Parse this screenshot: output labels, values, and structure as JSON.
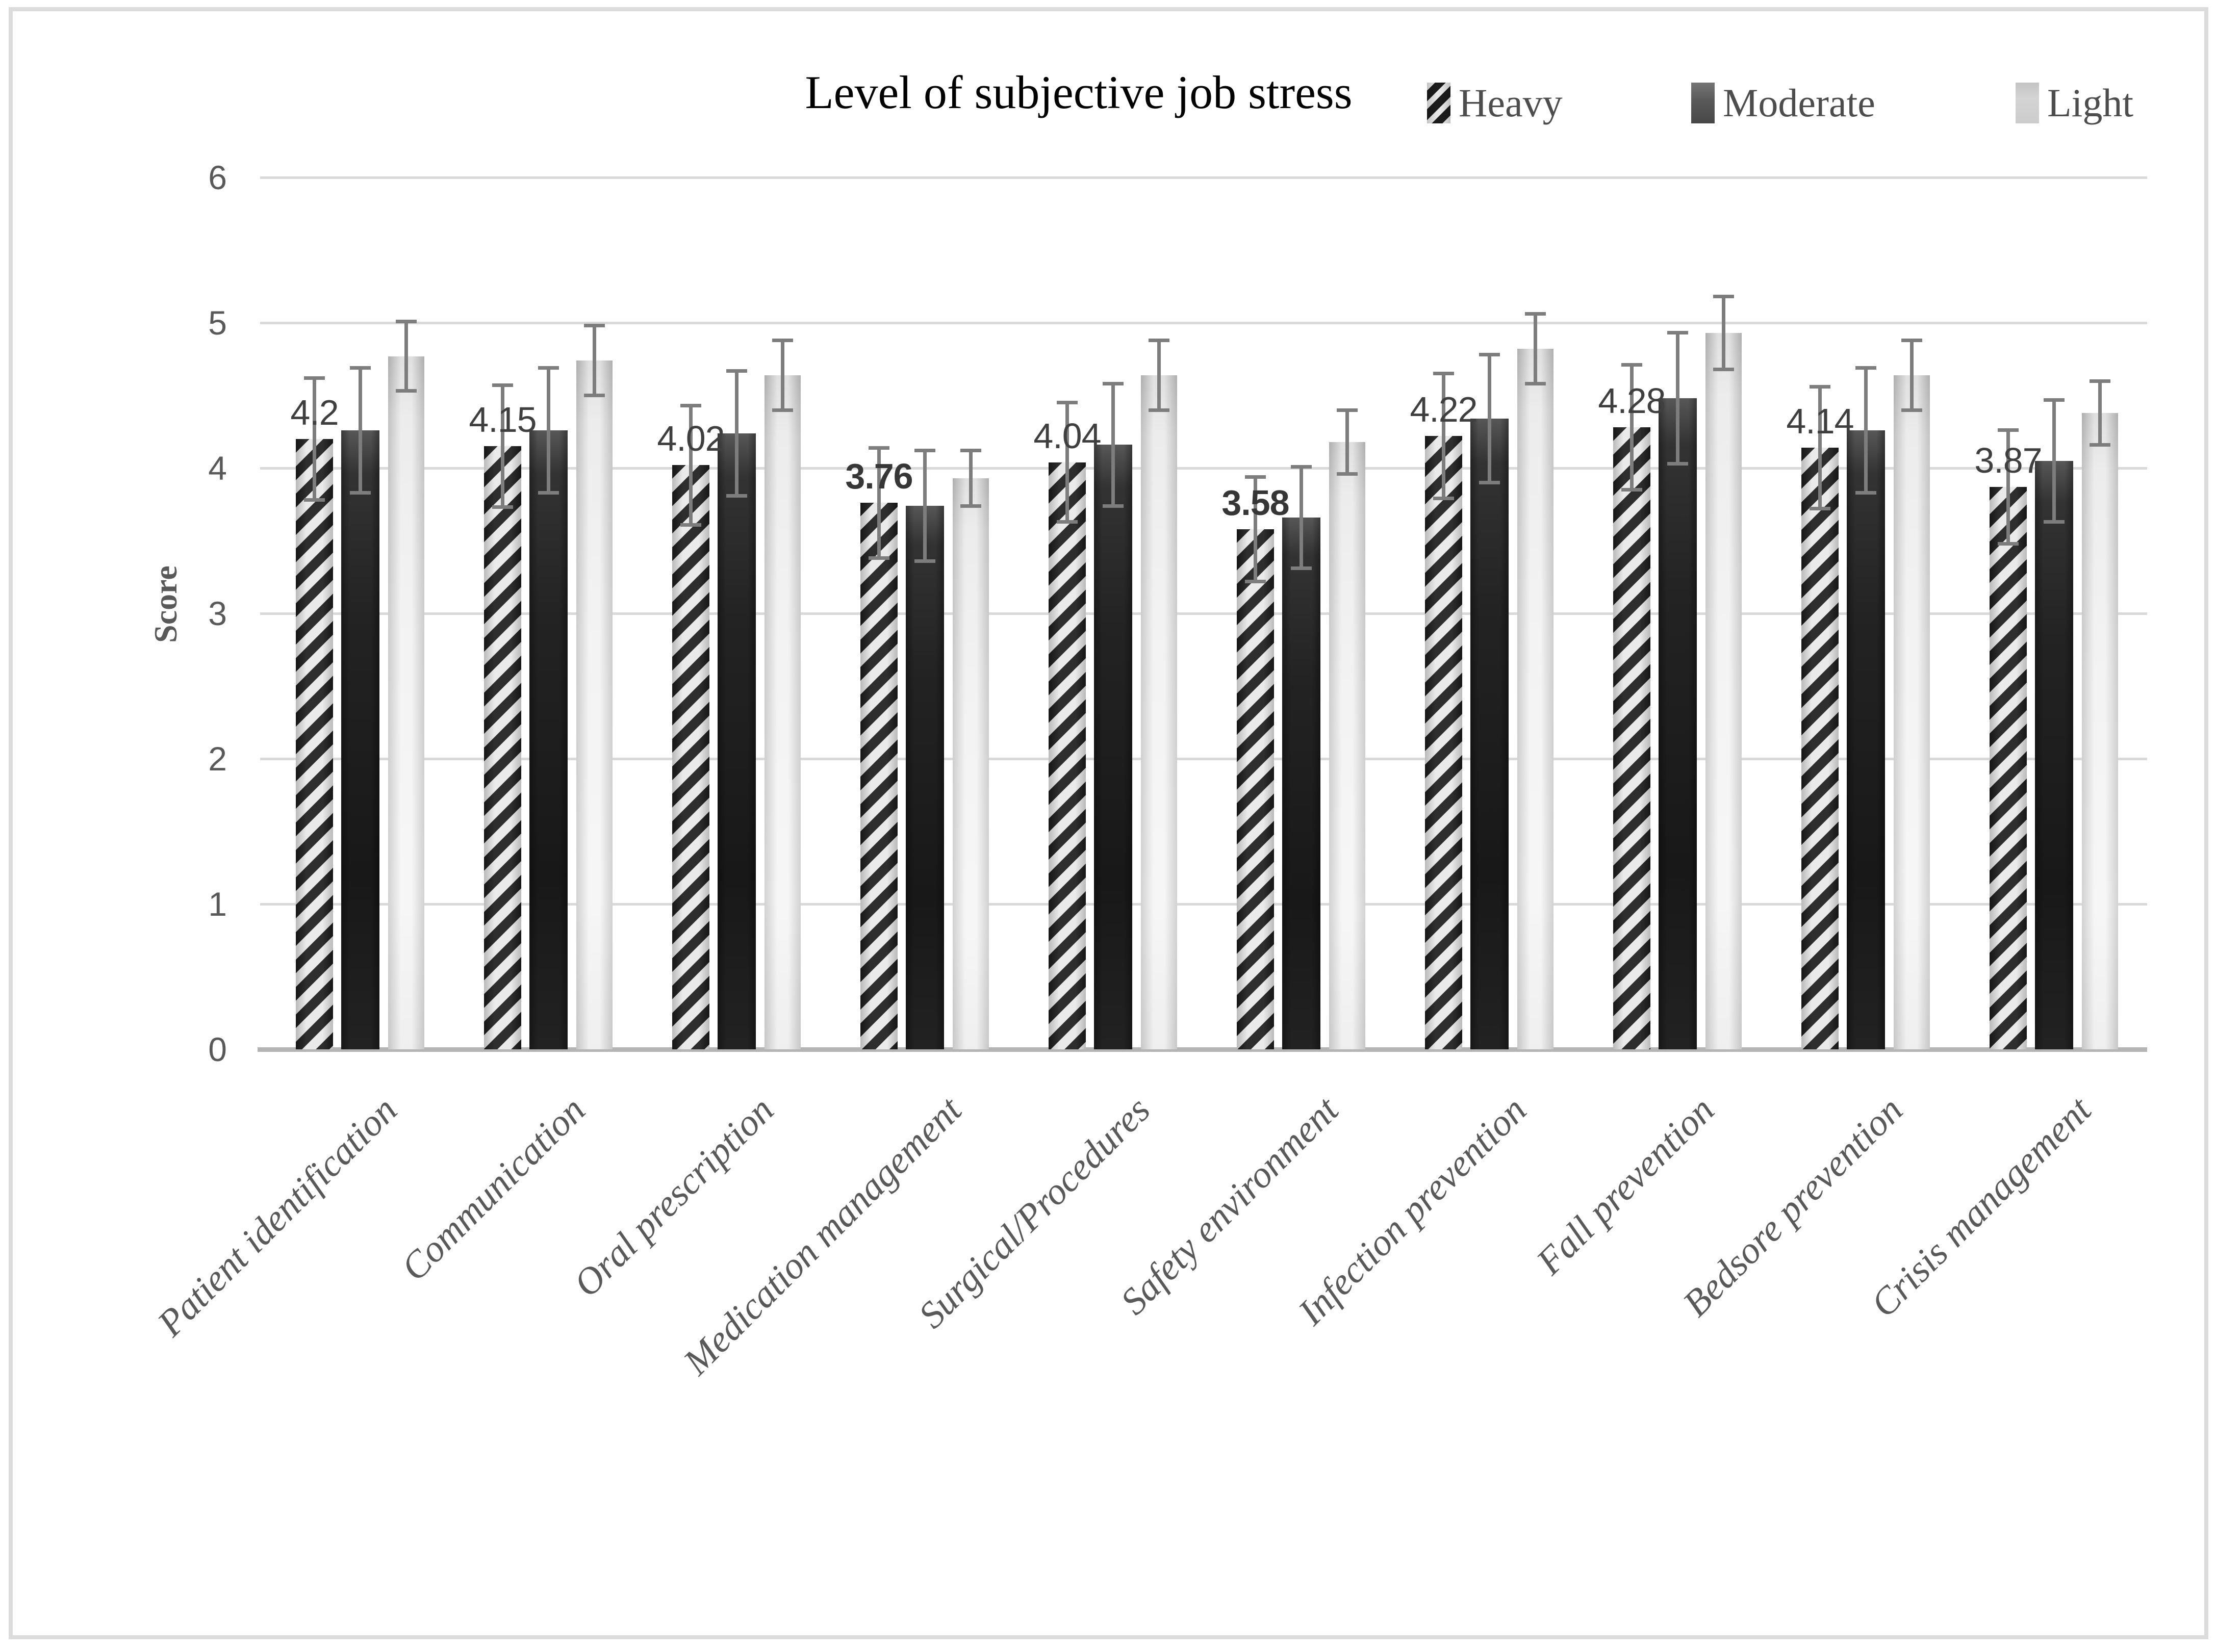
{
  "title": "Level of subjective job stress",
  "y_axis": {
    "label": "Score"
  },
  "legend": {
    "position": "top-right",
    "items": [
      {
        "key": "heavy",
        "label": "Heavy"
      },
      {
        "key": "moderate",
        "label": "Moderate"
      },
      {
        "key": "light",
        "label": "Light"
      }
    ]
  },
  "colors": {
    "hatch_stripe": "#1c1c1c",
    "hatch_background": "#e8e8e8",
    "moderate_fill": "#1f1f1f",
    "light_fill": "#e7e7e7",
    "gridline": "#d9d9d9",
    "axis_line": "#b4b4b4",
    "error_bar": "#7d7d7d",
    "text_gray": "#595959",
    "data_label": "#3f3f3f"
  },
  "chart_data": {
    "type": "bar",
    "title": "Level of subjective job stress",
    "xlabel": "",
    "ylabel": "Score",
    "ylim": [
      0,
      6
    ],
    "yticks": [
      0,
      1,
      2,
      3,
      4,
      5,
      6
    ],
    "grid": true,
    "legend_position": "top-right",
    "categories": [
      "Patient identification",
      "Communication",
      "Oral prescription",
      "Medication management",
      "Surgical/Procedures",
      "Safety environment",
      "Infection prevention",
      "Fall prevention",
      "Bedsore prevention",
      "Crisis management"
    ],
    "series": [
      {
        "name": "Heavy",
        "style": "black-diagonal-hatch",
        "values": [
          4.2,
          4.15,
          4.02,
          3.76,
          4.04,
          3.58,
          4.22,
          4.28,
          4.14,
          3.87
        ],
        "errors": [
          0.42,
          0.42,
          0.41,
          0.38,
          0.41,
          0.36,
          0.43,
          0.43,
          0.42,
          0.39
        ],
        "data_labels": [
          "4.2",
          "4.15",
          "4.02",
          "3.76",
          "4.04",
          "3.58",
          "4.22",
          "4.28",
          "4.14",
          "3.87"
        ],
        "bold_label_indexes": [
          3,
          5
        ]
      },
      {
        "name": "Moderate",
        "style": "dark-gray-gradient",
        "values": [
          4.26,
          4.26,
          4.24,
          3.74,
          4.16,
          3.66,
          4.34,
          4.48,
          4.26,
          4.05
        ],
        "errors": [
          0.43,
          0.43,
          0.43,
          0.38,
          0.42,
          0.35,
          0.44,
          0.45,
          0.43,
          0.42
        ]
      },
      {
        "name": "Light",
        "style": "light-gray-gradient",
        "values": [
          4.77,
          4.74,
          4.64,
          3.93,
          4.64,
          4.18,
          4.82,
          4.93,
          4.64,
          4.38
        ],
        "errors": [
          0.24,
          0.24,
          0.24,
          0.19,
          0.24,
          0.22,
          0.24,
          0.25,
          0.24,
          0.22
        ]
      }
    ]
  }
}
